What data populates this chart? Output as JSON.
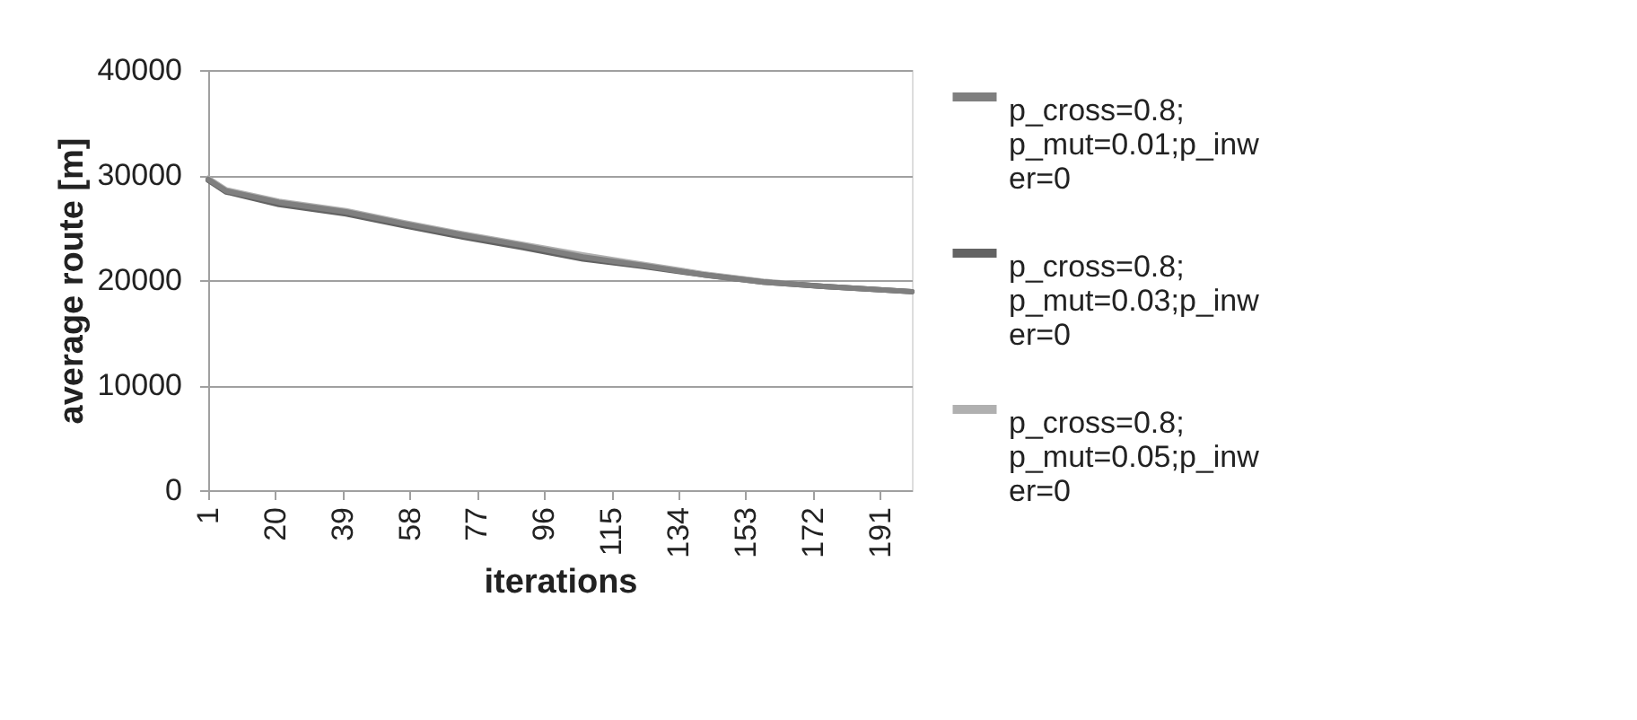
{
  "chart_data": {
    "type": "line",
    "xlabel": "iterations",
    "ylabel": "average route [m]",
    "xlim": [
      1,
      200
    ],
    "xticks": [
      1,
      20,
      39,
      58,
      77,
      96,
      115,
      134,
      153,
      172,
      191
    ],
    "ylim": [
      0,
      40000
    ],
    "yticks": [
      0,
      10000,
      20000,
      30000,
      40000
    ],
    "grid": "y",
    "legend": "right",
    "marker": "none",
    "line_style": "solid",
    "series": [
      {
        "name": "p_cross=0.8; p_mut=0.01;p_inwer=0",
        "color": "#7f7f7f",
        "x": [
          1,
          6,
          21,
          40,
          56,
          73,
          90,
          107,
          124,
          141,
          158,
          175,
          200
        ],
        "values": [
          29600,
          28500,
          27400,
          26500,
          25400,
          24300,
          23300,
          22200,
          21400,
          20500,
          19800,
          19400,
          18900
        ]
      },
      {
        "name": "p_cross=0.8; p_mut=0.03;p_inwer=0",
        "color": "#636363",
        "x": [
          1,
          6,
          21,
          40,
          56,
          73,
          90,
          107,
          124,
          141,
          158,
          175,
          200
        ],
        "values": [
          29500,
          28400,
          27200,
          26300,
          25200,
          24100,
          23100,
          22000,
          21300,
          20500,
          19800,
          19400,
          18900
        ]
      },
      {
        "name": "p_cross=0.8; p_mut=0.05;p_inwer=0",
        "color": "#b0b0b0",
        "x": [
          1,
          6,
          21,
          40,
          56,
          73,
          90,
          107,
          124,
          141,
          158,
          175,
          200
        ],
        "values": [
          29700,
          28600,
          27500,
          26600,
          25500,
          24400,
          23400,
          22400,
          21500,
          20600,
          19900,
          19400,
          18900
        ]
      }
    ]
  }
}
